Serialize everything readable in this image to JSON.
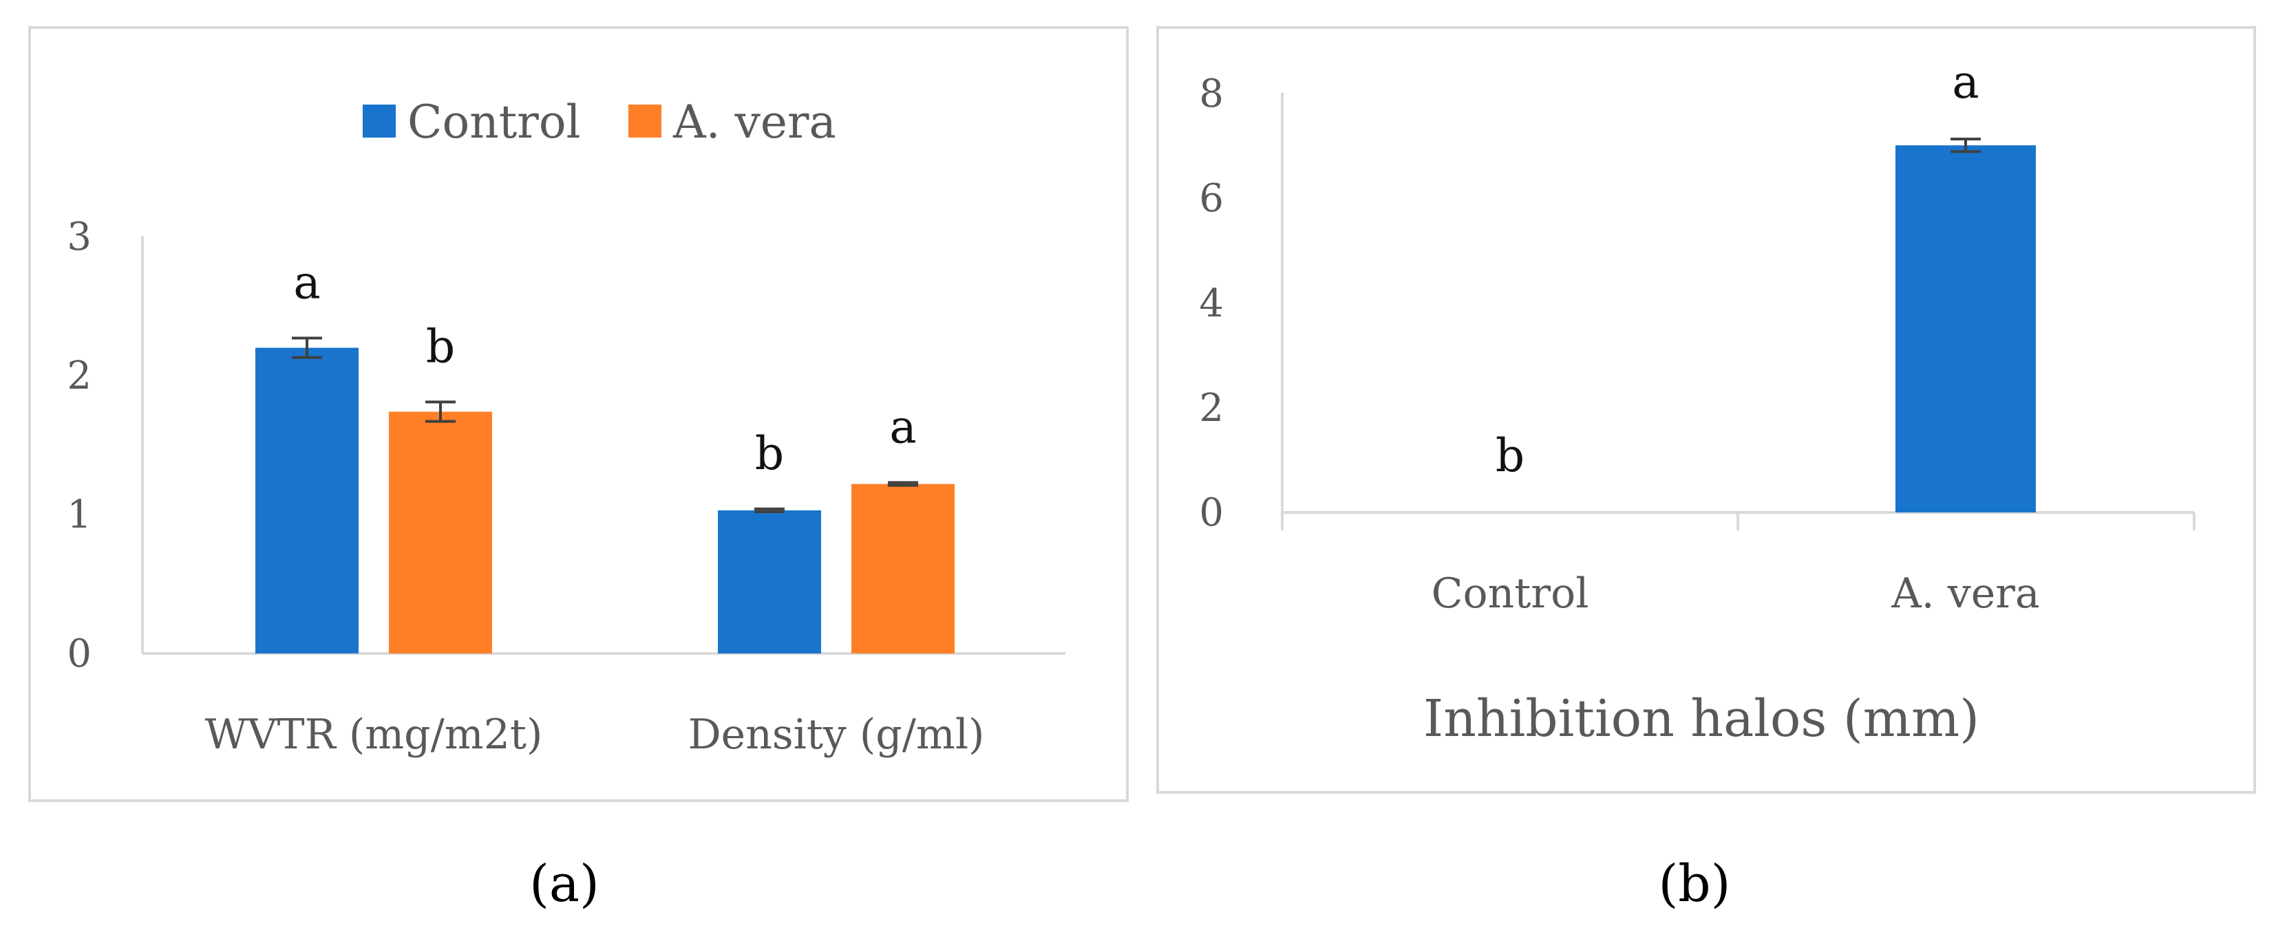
{
  "colors": {
    "control": "#1874CD",
    "aloe": "#FF7F27",
    "axis": "#D9D9D9",
    "frame": "#D9D9D9",
    "error_bar": "#404040"
  },
  "chart_data": [
    {
      "panel": "a",
      "panel_label": "(a)",
      "type": "bar",
      "title": "",
      "xlabel": "",
      "ylabel": "",
      "ylim": [
        0,
        3
      ],
      "yticks": [
        "0",
        "1",
        "2",
        "3"
      ],
      "categories": [
        "WVTR (mg/m2t)",
        "Density (g/ml)"
      ],
      "legend_position": "top",
      "series": [
        {
          "name": "Control",
          "color_key": "control",
          "values": [
            2.2,
            1.03
          ],
          "errors": [
            0.07,
            0.01
          ],
          "letters": [
            "a",
            "b"
          ]
        },
        {
          "name": "A. vera",
          "color_key": "aloe",
          "values": [
            1.74,
            1.22
          ],
          "errors": [
            0.07,
            0.01
          ],
          "letters": [
            "b",
            "a"
          ]
        }
      ]
    },
    {
      "panel": "b",
      "panel_label": "(b)",
      "type": "bar",
      "title": "",
      "xlabel": "Inhibition halos (mm)",
      "ylabel": "",
      "ylim": [
        0,
        8
      ],
      "yticks": [
        "0",
        "2",
        "4",
        "6",
        "8"
      ],
      "categories": [
        "Control",
        "A. vera"
      ],
      "series": [
        {
          "name": "Inhibition halos",
          "color_key": "control",
          "values": [
            0,
            7.0
          ],
          "errors": [
            0,
            0.12
          ],
          "letters": [
            "b",
            "a"
          ]
        }
      ]
    }
  ]
}
